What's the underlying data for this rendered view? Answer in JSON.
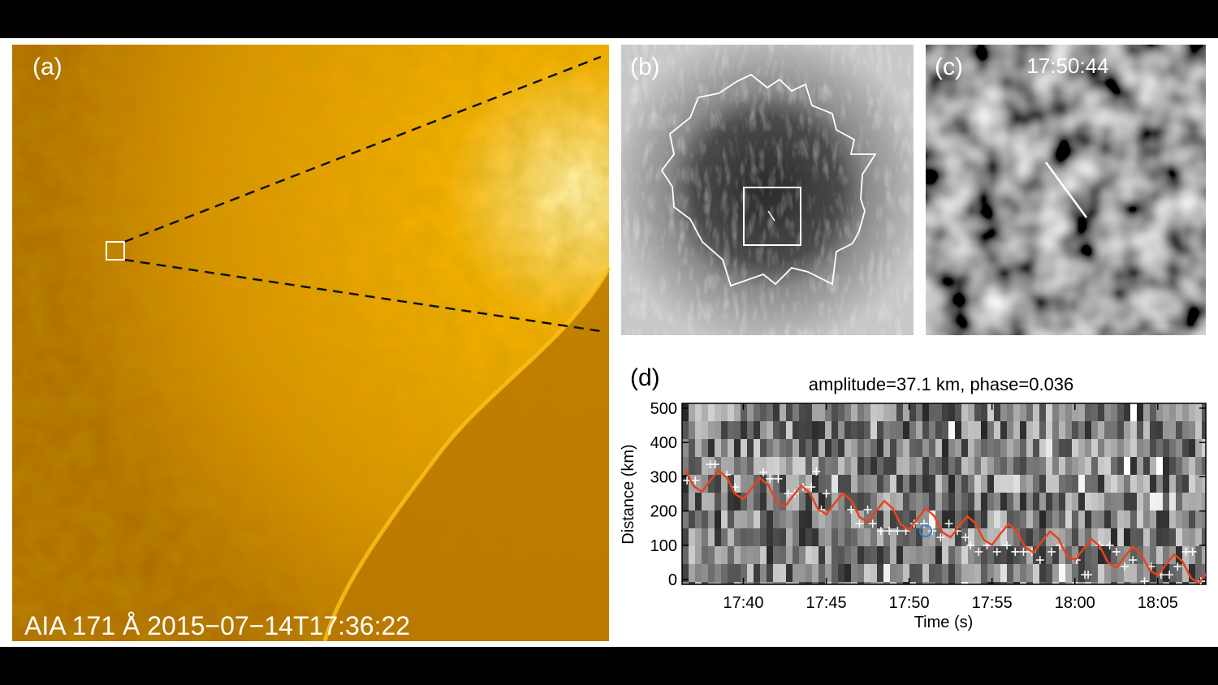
{
  "panels": {
    "a": {
      "label": "(a)",
      "caption": "AIA 171 Å 2015−07−14T17:36:22"
    },
    "b": {
      "label": "(b)"
    },
    "c": {
      "label": "(c)",
      "time": "17:50:44"
    }
  },
  "chart_data": {
    "type": "scatter",
    "label": "(d)",
    "title": "amplitude=37.1 km, phase=0.036",
    "x_label": "Time (s)",
    "y_label": "Distance (km)",
    "xlim": [
      36.3,
      67.9
    ],
    "xticks": [
      {
        "value": 40,
        "label": "17:40"
      },
      {
        "value": 45,
        "label": "17:45"
      },
      {
        "value": 50,
        "label": "17:50"
      },
      {
        "value": 55,
        "label": "17:55"
      },
      {
        "value": 60,
        "label": "18:00"
      },
      {
        "value": 65,
        "label": "18:05"
      }
    ],
    "ylim": [
      -14,
      514
    ],
    "yticks": [
      0,
      100,
      200,
      300,
      400,
      500
    ],
    "series": [
      {
        "color": "#ffffff",
        "marker": "+",
        "x": [
          36.6,
          37.1,
          38.0,
          38.3,
          39.0,
          39.5,
          41.2,
          41.6,
          42.1,
          42.7,
          43.1,
          43.6,
          44.1,
          44.4,
          45.0,
          44.7,
          46.5,
          47.0,
          47.5,
          47.8,
          48.3,
          48.8,
          49.3,
          49.8,
          50.3,
          50.9,
          51.4,
          51.9,
          52.4,
          52.9,
          53.4,
          53.7,
          54.2,
          54.7,
          55.3,
          55.9,
          56.4,
          56.9,
          57.4,
          57.9,
          58.6,
          59.1,
          60.1,
          60.6,
          60.8,
          61.5,
          62.1,
          62.5,
          63.0,
          63.5,
          64.2,
          64.6,
          65.2,
          65.7,
          66.2,
          66.7,
          67.1,
          67.6
        ],
        "values": [
          289,
          289,
          336,
          336,
          306,
          270,
          313,
          294,
          294,
          251,
          251,
          270,
          270,
          315,
          251,
          204,
          204,
          163,
          204,
          163,
          142,
          142,
          142,
          142,
          163,
          163,
          142,
          123,
          163,
          142,
          123,
          100,
          81,
          100,
          81,
          100,
          81,
          81,
          81,
          57,
          81,
          100,
          57,
          14,
          14,
          100,
          100,
          81,
          38,
          57,
          -5,
          38,
          14,
          14,
          38,
          81,
          81,
          -5
        ]
      },
      {
        "color": "#e8431c",
        "marker": "line",
        "x": [
          36.5,
          37.0,
          37.5,
          38.0,
          38.5,
          39.0,
          39.5,
          40.0,
          40.5,
          41.0,
          41.5,
          42.0,
          42.5,
          43.0,
          43.5,
          44.0,
          44.5,
          45.0,
          45.5,
          46.0,
          46.5,
          47.0,
          47.5,
          48.0,
          48.5,
          49.0,
          49.5,
          50.0,
          50.5,
          51.0,
          51.5,
          52.0,
          52.5,
          53.0,
          53.5,
          54.0,
          54.5,
          55.0,
          55.5,
          56.0,
          56.5,
          57.0,
          57.5,
          58.0,
          58.5,
          59.0,
          59.5,
          60.0,
          60.5,
          61.0,
          61.5,
          62.0,
          62.5,
          63.0,
          63.5,
          64.0,
          64.5,
          65.0,
          65.5,
          66.0,
          66.5,
          67.0,
          67.5,
          68.0
        ],
        "values": [
          319.8,
          272.0,
          256.7,
          289.0,
          318.1,
          297.6,
          249.7,
          234.5,
          266.7,
          295.9,
          275.3,
          227.5,
          212.2,
          244.5,
          273.6,
          253.1,
          205.2,
          190.0,
          222.2,
          251.4,
          230.8,
          183.0,
          167.7,
          200.0,
          229.1,
          208.6,
          160.7,
          145.5,
          177.7,
          206.9,
          186.3,
          138.5,
          123.2,
          155.5,
          184.6,
          164.1,
          116.2,
          101.0,
          133.2,
          162.4,
          141.8,
          94.0,
          78.7,
          111.0,
          140.1,
          119.6,
          71.7,
          56.5,
          88.7,
          117.9,
          97.3,
          49.5,
          34.2,
          66.5,
          95.6,
          75.1,
          27.2,
          12.0,
          44.2,
          73.4,
          52.8,
          5.0,
          -10.3,
          22.0
        ]
      },
      {
        "color": "#3a7bd5",
        "marker": "o",
        "x": [
          51.0
        ],
        "values": [
          142
        ]
      }
    ]
  }
}
